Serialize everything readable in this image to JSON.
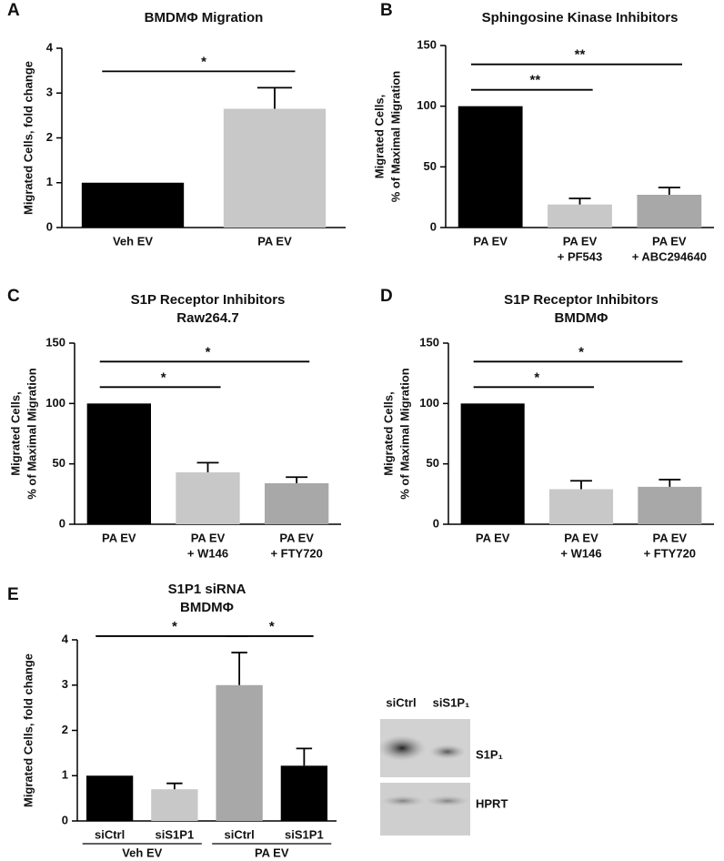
{
  "chart_data": [
    {
      "type": "bar",
      "panel": "A",
      "title": [
        "BMDMΦ Migration"
      ],
      "ylabel": [
        "Migrated  Cells, fold change"
      ],
      "categories": [
        [
          "Veh EV"
        ],
        [
          "PA EV"
        ]
      ],
      "values": [
        1,
        2.65
      ],
      "errors": [
        null,
        0.47
      ],
      "colors": [
        "#000000",
        "#c8c8c8"
      ],
      "ylim": [
        0,
        4
      ],
      "yticks": [
        0,
        1,
        2,
        3,
        4
      ],
      "significance": [
        {
          "from": 0,
          "to": 1,
          "label": "*"
        }
      ]
    },
    {
      "type": "bar",
      "panel": "B",
      "title": [
        "Sphingosine Kinase Inhibitors"
      ],
      "ylabel": [
        "Migrated  Cells,",
        "% of Maximal Migration"
      ],
      "categories": [
        [
          "PA EV"
        ],
        [
          "PA EV",
          "+ PF543"
        ],
        [
          "PA EV",
          "+ ABC294640"
        ]
      ],
      "values": [
        100,
        19,
        27
      ],
      "errors": [
        null,
        5,
        6
      ],
      "colors": [
        "#000000",
        "#c8c8c8",
        "#a8a8a8"
      ],
      "ylim": [
        0,
        150
      ],
      "yticks": [
        0,
        50,
        100,
        150
      ],
      "significance": [
        {
          "from": 0,
          "to": 1,
          "label": "**"
        },
        {
          "from": 0,
          "to": 2,
          "label": "**"
        }
      ]
    },
    {
      "type": "bar",
      "panel": "C",
      "title": [
        "S1P Receptor Inhibitors",
        "Raw264.7"
      ],
      "ylabel": [
        "Migrated  Cells,",
        "% of Maximal Migration"
      ],
      "categories": [
        [
          "PA EV"
        ],
        [
          "PA EV",
          "+ W146"
        ],
        [
          "PA EV",
          "+ FTY720"
        ]
      ],
      "values": [
        100,
        43,
        34
      ],
      "errors": [
        null,
        8,
        5
      ],
      "colors": [
        "#000000",
        "#c8c8c8",
        "#a8a8a8"
      ],
      "ylim": [
        0,
        150
      ],
      "yticks": [
        0,
        50,
        100,
        150
      ],
      "significance": [
        {
          "from": 0,
          "to": 1,
          "label": "*"
        },
        {
          "from": 0,
          "to": 2,
          "label": "*"
        }
      ]
    },
    {
      "type": "bar",
      "panel": "D",
      "title": [
        "S1P Receptor Inhibitors",
        "BMDMΦ"
      ],
      "ylabel": [
        "Migrated  Cells,",
        "% of Maximal Migration"
      ],
      "categories": [
        [
          "PA EV"
        ],
        [
          "PA EV",
          "+ W146"
        ],
        [
          "PA EV",
          "+ FTY720"
        ]
      ],
      "values": [
        100,
        29,
        31
      ],
      "errors": [
        null,
        7,
        6
      ],
      "colors": [
        "#000000",
        "#c8c8c8",
        "#a8a8a8"
      ],
      "ylim": [
        0,
        150
      ],
      "yticks": [
        0,
        50,
        100,
        150
      ],
      "significance": [
        {
          "from": 0,
          "to": 1,
          "label": "*"
        },
        {
          "from": 0,
          "to": 2,
          "label": "*"
        }
      ]
    },
    {
      "type": "bar",
      "panel": "E",
      "title": [
        "S1P1 siRNA",
        "BMDMΦ"
      ],
      "ylabel": [
        "Migrated  Cells, fold change"
      ],
      "categories": [
        [
          "siCtrl"
        ],
        [
          "siS1P1"
        ],
        [
          "siCtrl"
        ],
        [
          "siS1P1"
        ]
      ],
      "values": [
        1,
        0.7,
        3.0,
        1.22
      ],
      "errors": [
        null,
        0.13,
        0.72,
        0.38
      ],
      "colors": [
        "#000000",
        "#c8c8c8",
        "#a8a8a8",
        "#000000"
      ],
      "ylim": [
        0,
        4
      ],
      "yticks": [
        0,
        1,
        2,
        3,
        4
      ],
      "groups": [
        {
          "name": "Veh EV",
          "from": 0,
          "to": 1
        },
        {
          "name": "PA EV",
          "from": 2,
          "to": 3
        }
      ],
      "significance": [
        {
          "from": 0,
          "to": 2,
          "label": "*"
        },
        {
          "from": 2,
          "to": 3,
          "label": "*"
        }
      ]
    }
  ],
  "blot": {
    "columns": [
      "siCtrl",
      "siS1P₁"
    ],
    "rows": [
      "S1P₁",
      "HPRT"
    ]
  }
}
